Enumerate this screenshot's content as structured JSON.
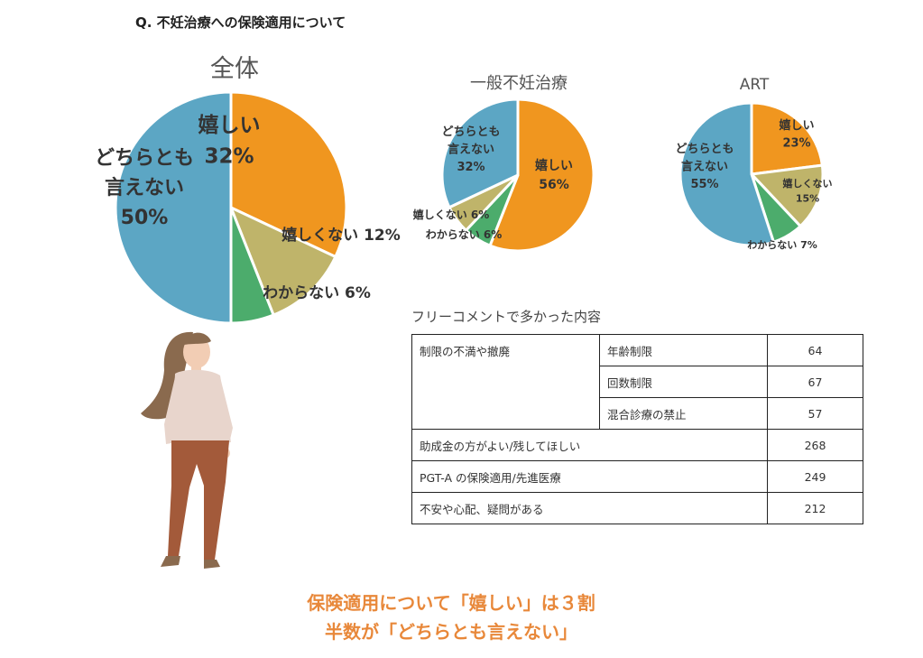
{
  "question": "Q.  不妊治療への保険適用について",
  "colors": {
    "happy": "#f0961f",
    "not_happy": "#bfb46a",
    "unknown": "#4cac6c",
    "neither": "#5ca6c4",
    "conclusion": "#e8883a"
  },
  "chart_data": [
    {
      "type": "pie",
      "title": "全体",
      "slices": [
        {
          "label": "嬉しい",
          "value": 32
        },
        {
          "label": "嬉しくない",
          "value": 12
        },
        {
          "label": "わからない",
          "value": 6
        },
        {
          "label": "どちらとも言えない",
          "value": 50
        }
      ],
      "data_labels": [
        {
          "lines": [
            "嬉しい",
            "32%"
          ]
        },
        {
          "lines": [
            "嬉しくない 12%"
          ]
        },
        {
          "lines": [
            "わからない 6%"
          ]
        },
        {
          "lines": [
            "どちらとも",
            "言えない",
            "50%"
          ]
        }
      ]
    },
    {
      "type": "pie",
      "title": "一般不妊治療",
      "slices": [
        {
          "label": "嬉しい",
          "value": 56
        },
        {
          "label": "わからない",
          "value": 6
        },
        {
          "label": "嬉しくない",
          "value": 6
        },
        {
          "label": "どちらとも言えない",
          "value": 32
        }
      ],
      "data_labels": [
        {
          "lines": [
            "嬉しい",
            "56%"
          ]
        },
        {
          "lines": [
            "わからない 6%"
          ]
        },
        {
          "lines": [
            "嬉しくない 6%"
          ]
        },
        {
          "lines": [
            "どちらとも",
            "言えない",
            "32%"
          ]
        }
      ]
    },
    {
      "type": "pie",
      "title": "ART",
      "slices": [
        {
          "label": "嬉しい",
          "value": 23
        },
        {
          "label": "嬉しくない",
          "value": 15
        },
        {
          "label": "わからない",
          "value": 7
        },
        {
          "label": "どちらとも言えない",
          "value": 55
        }
      ],
      "data_labels": [
        {
          "lines": [
            "嬉しい",
            "23%"
          ]
        },
        {
          "lines": [
            "嬉しくない",
            "15%"
          ]
        },
        {
          "lines": [
            "わからない 7%"
          ]
        },
        {
          "lines": [
            "どちらとも",
            "言えない",
            "55%"
          ]
        }
      ]
    },
    {
      "type": "table",
      "title": "フリーコメントで多かった内容",
      "rows": [
        {
          "topic": "制限の不満や撤廃",
          "sub": "年齢制限",
          "count": 64
        },
        {
          "topic": "",
          "sub": "回数制限",
          "count": 67
        },
        {
          "topic": "",
          "sub": "混合診療の禁止",
          "count": 57
        },
        {
          "topic": "助成金の方がよい/残してほしい",
          "sub": "",
          "count": 268
        },
        {
          "topic": "PGT-A の保険適用/先進医療",
          "sub": "",
          "count": 249
        },
        {
          "topic": "不安や心配、疑問がある",
          "sub": "",
          "count": 212
        }
      ]
    }
  ],
  "conclusion": {
    "line1": "保険適用について「嬉しい」は３割",
    "line2": "半数が「どちらとも言えない」"
  }
}
